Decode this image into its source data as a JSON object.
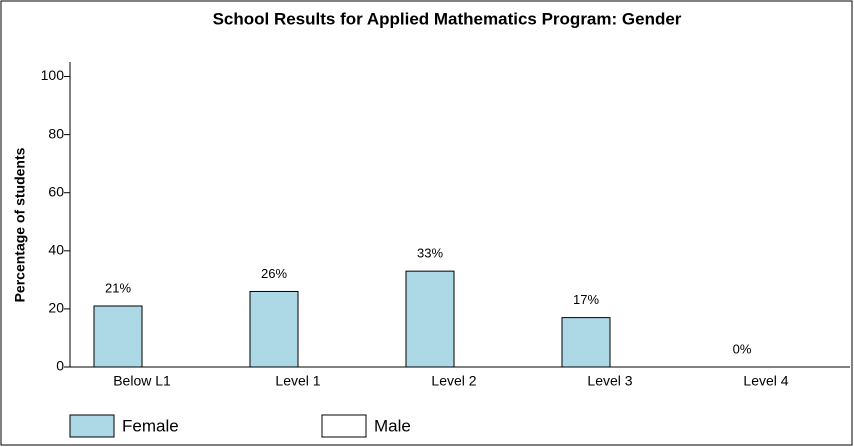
{
  "chart_data": {
    "type": "bar",
    "title": "School Results for Applied Mathematics Program: Gender",
    "y_label": "Percentage of students",
    "categories": [
      "Below L1",
      "Level 1",
      "Level 2",
      "Level 3",
      "Level 4"
    ],
    "series": [
      {
        "name": "Female",
        "color": "#add8e6",
        "values": [
          21,
          26,
          33,
          17,
          0
        ],
        "value_labels": [
          "21%",
          "26%",
          "33%",
          "17%",
          "0%"
        ]
      },
      {
        "name": "Male",
        "color": "#ffffff",
        "values": [
          null,
          null,
          null,
          null,
          null
        ]
      }
    ],
    "ylim": [
      0,
      105
    ],
    "yticks": [
      0,
      20,
      40,
      60,
      80,
      100
    ]
  }
}
